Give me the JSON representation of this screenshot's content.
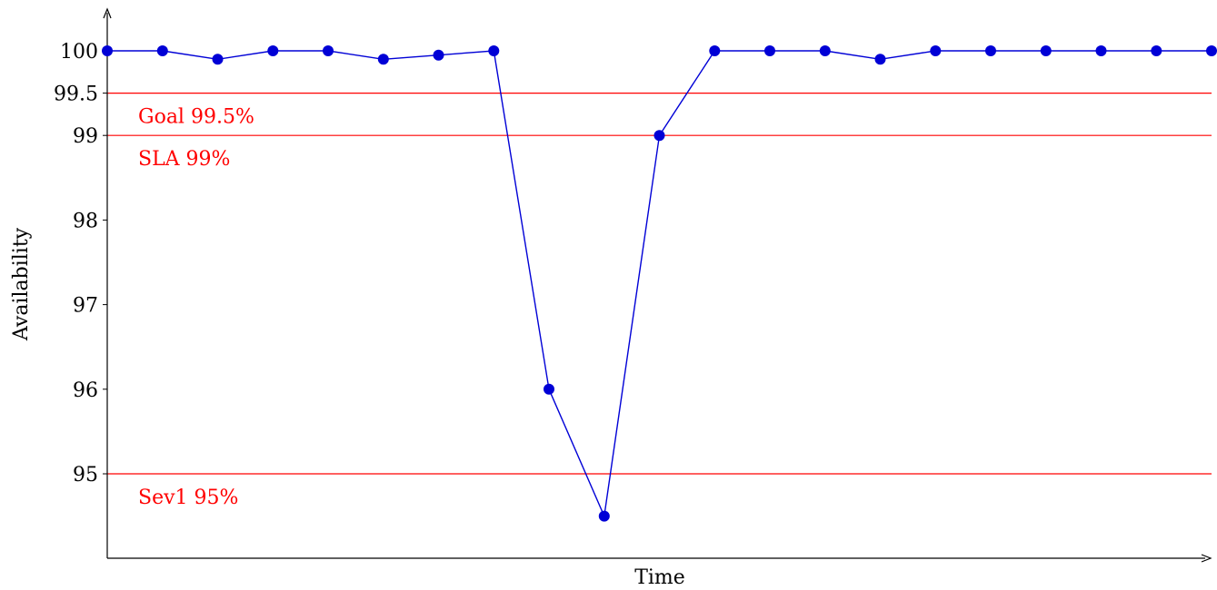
{
  "chart_data": {
    "type": "line",
    "title": "",
    "xlabel": "Time",
    "ylabel": "Availability",
    "ylim": [
      94,
      100.5
    ],
    "yticks": [
      "95",
      "96",
      "97",
      "98",
      "99",
      "99.5",
      "100"
    ],
    "x_ticks_shown": false,
    "grid": false,
    "series": [
      {
        "color": "#0000d6",
        "marker": "circle",
        "values": [
          100,
          100,
          99.9,
          100,
          100,
          99.9,
          99.95,
          100,
          96,
          94.5,
          99,
          100,
          100,
          100,
          99.9,
          100,
          100,
          100,
          100,
          100,
          100
        ]
      }
    ],
    "reference_lines": [
      {
        "y": 99.5,
        "label": "Goal 99.5%",
        "color": "#ff0000"
      },
      {
        "y": 99,
        "label": "SLA 99%",
        "color": "#ff0000"
      },
      {
        "y": 95,
        "label": "Sev1 95%",
        "color": "#ff0000"
      }
    ]
  }
}
